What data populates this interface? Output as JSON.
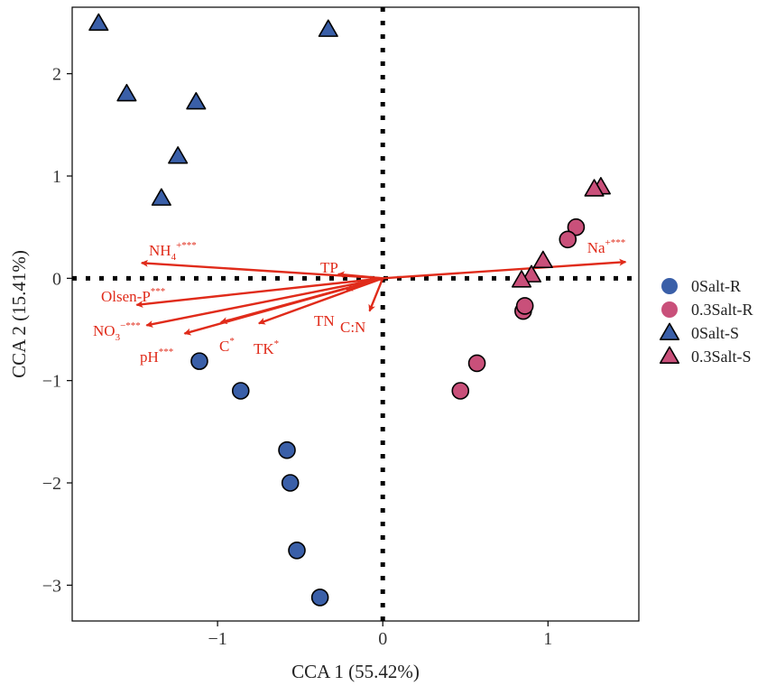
{
  "chart_data": {
    "type": "scatter",
    "xlabel": "CCA 1 (55.42%)",
    "ylabel": "CCA 2 (15.41%)",
    "xlim": [
      -1.88,
      1.55
    ],
    "ylim": [
      -3.35,
      2.65
    ],
    "xticks": [
      -1,
      0,
      1
    ],
    "xtick_labels": [
      "−1",
      "0",
      "1"
    ],
    "yticks": [
      -3,
      -2,
      -1,
      0,
      1,
      2
    ],
    "ytick_labels": [
      "−3",
      "−2",
      "−1",
      "0",
      "1",
      "2"
    ],
    "grid": false,
    "reference_lines": {
      "x": 0,
      "y": 0,
      "style": "dotted"
    },
    "legend_position": "right",
    "series": [
      {
        "name": "0Salt-R",
        "marker": "circle",
        "color": "#3a5fa8",
        "points": [
          [
            -1.11,
            -0.81
          ],
          [
            -0.86,
            -1.1
          ],
          [
            -0.58,
            -1.68
          ],
          [
            -0.56,
            -2.0
          ],
          [
            -0.52,
            -2.66
          ],
          [
            -0.38,
            -3.12
          ]
        ]
      },
      {
        "name": "0.3Salt-R",
        "marker": "circle",
        "color": "#c9507a",
        "points": [
          [
            1.17,
            0.5
          ],
          [
            1.12,
            0.38
          ],
          [
            0.85,
            -0.32
          ],
          [
            0.86,
            -0.27
          ],
          [
            0.57,
            -0.83
          ],
          [
            0.47,
            -1.1
          ]
        ]
      },
      {
        "name": "0Salt-S",
        "marker": "triangle",
        "color": "#3a5fa8",
        "points": [
          [
            -1.72,
            2.49
          ],
          [
            -1.55,
            1.8
          ],
          [
            -1.13,
            1.72
          ],
          [
            -1.24,
            1.19
          ],
          [
            -1.34,
            0.78
          ],
          [
            -0.33,
            2.43
          ]
        ]
      },
      {
        "name": "0.3Salt-S",
        "marker": "triangle",
        "color": "#c9507a",
        "points": [
          [
            1.32,
            0.89
          ],
          [
            1.28,
            0.87
          ],
          [
            0.97,
            0.17
          ],
          [
            0.9,
            0.03
          ],
          [
            0.84,
            -0.02
          ]
        ]
      }
    ],
    "vectors": [
      {
        "label": "Na",
        "superscript": "+***",
        "x": 1.47,
        "y": 0.16
      },
      {
        "label": "NH",
        "subscript": "4",
        "superscript": "+***",
        "x": -1.46,
        "y": 0.15
      },
      {
        "label": "TP",
        "x": -0.27,
        "y": 0.04
      },
      {
        "label": "Olsen-P",
        "superscript": "***",
        "x": -1.49,
        "y": -0.26
      },
      {
        "label": "NO",
        "subscript": "3",
        "superscript": "−***",
        "x": -1.43,
        "y": -0.46
      },
      {
        "label": "pH",
        "superscript": "***",
        "x": -1.2,
        "y": -0.54
      },
      {
        "label": "C",
        "superscript": "*",
        "x": -0.98,
        "y": -0.43
      },
      {
        "label": "TK",
        "superscript": "*",
        "x": -0.75,
        "y": -0.44
      },
      {
        "label": "TN",
        "x": -0.22,
        "y": -0.11
      },
      {
        "label": "C:N",
        "x": -0.08,
        "y": -0.32
      }
    ],
    "vector_color": "#e02b1a"
  }
}
